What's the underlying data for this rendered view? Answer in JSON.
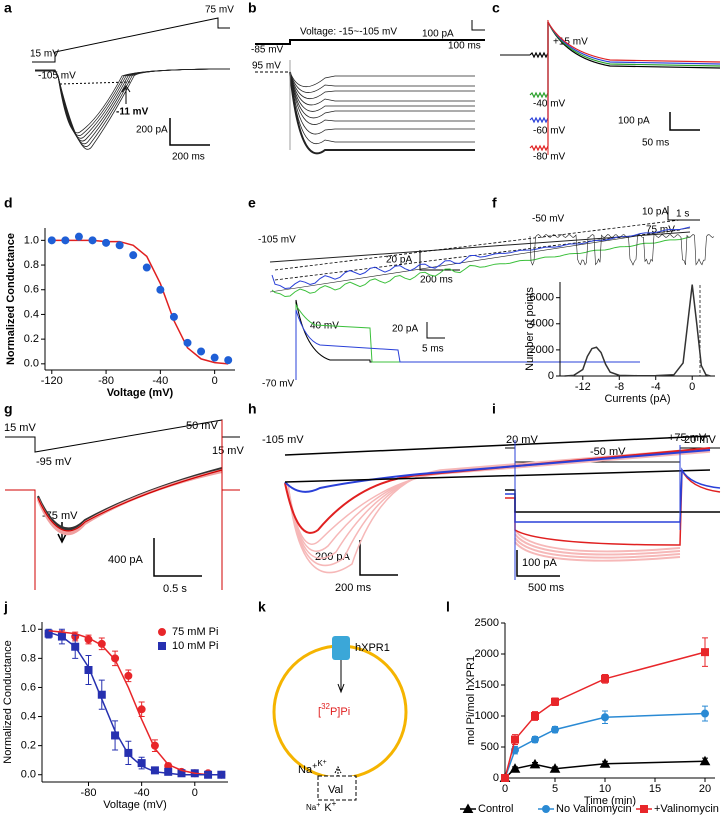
{
  "figure": {
    "a": {
      "label": "a",
      "v_hold": "15 mV",
      "v_end": "75 mV",
      "v_start": "-105 mV",
      "reversal": "-11 mV",
      "scale_y": "200 pA",
      "scale_x": "200 ms"
    },
    "b": {
      "label": "b",
      "v_hold": "-85 mV",
      "v_step": "95 mV",
      "protocol": "Voltage: -15~-105 mV",
      "scale_y": "100 pA",
      "scale_x": "100 ms"
    },
    "c": {
      "label": "c",
      "v_step": "+15 mV",
      "v1": "-40 mV",
      "v2": "-60 mV",
      "v3": "-80 mV",
      "scale_y": "100 pA",
      "scale_x": "50 ms"
    },
    "d": {
      "label": "d"
    },
    "e": {
      "label": "e",
      "v_start": "-105 mV",
      "v_end": "75 mV",
      "scale_y": "20 pA",
      "scale_x": "200 ms",
      "v_step": "40 mV",
      "v_hold": "-70 mV",
      "scale_y2": "20 pA",
      "scale_x2": "5 ms"
    },
    "f": {
      "label": "f",
      "v_hold": "-50 mV",
      "scale_y": "10 pA",
      "scale_x": "1 s"
    },
    "g": {
      "label": "g",
      "v_hold": "15 mV",
      "v_start": "-95 mV",
      "v_end": "50 mV",
      "v_after": "15 mV",
      "reversal": "-75 mV",
      "scale_y": "400 pA",
      "scale_x": "0.5 s"
    },
    "h": {
      "label": "h",
      "v_start": "-105 mV",
      "v_end": "+75 mV",
      "scale_y": "200 pA",
      "scale_x": "200 ms"
    },
    "i": {
      "label": "i",
      "v_hold": "20 mV",
      "v_step": "-50 mV",
      "v_after": "20 mV",
      "scale_y": "100 pA",
      "scale_x": "500 ms"
    },
    "j": {
      "label": "j"
    },
    "k": {
      "label": "k",
      "transporter": "hXPR1",
      "pi_open": "[",
      "pi_mass": "32",
      "pi_rest": "P]Pi",
      "na_in": "Na",
      "na_in_charge": "+",
      "k_in": "K",
      "k_in_charge": "+",
      "val": "Val",
      "na_out": "Na",
      "na_out_charge": "+",
      "k_out": "K",
      "k_out_charge": "+"
    },
    "l": {
      "label": "l"
    }
  },
  "chart_data": [
    {
      "type": "scatter",
      "xlabel": "Voltage (mV)",
      "ylabel": "Normalized Conductance",
      "x": [
        -120,
        -110,
        -100,
        -90,
        -80,
        -70,
        -60,
        -50,
        -40,
        -30,
        -20,
        -10,
        0,
        10
      ],
      "xlim": [
        -125,
        15
      ],
      "ylim": [
        -0.05,
        1.1
      ],
      "xticks": [
        -120,
        -80,
        -40,
        0
      ],
      "yticks": [
        {
          "value": 0,
          "label": "0.0"
        },
        {
          "value": 0.2,
          "label": "0.2"
        },
        {
          "value": 0.4,
          "label": "0.4"
        },
        {
          "value": 0.6,
          "label": "0.6"
        },
        {
          "value": 0.8,
          "label": "0.8"
        },
        {
          "value": 1,
          "label": "1.0"
        }
      ],
      "series": [
        {
          "color": "#e02020",
          "mode": "line",
          "values": [
            1.0,
            1.0,
            1.0,
            1.0,
            0.99,
            0.99,
            0.96,
            0.87,
            0.65,
            0.35,
            0.13,
            0.04,
            0.01,
            0.0
          ]
        },
        {
          "color": "#1f5fd6",
          "mode": "points",
          "marker": "circle",
          "values": [
            1.0,
            1.0,
            1.03,
            1.0,
            0.98,
            0.96,
            0.88,
            0.78,
            0.6,
            0.38,
            0.17,
            0.1,
            0.05,
            0.03
          ]
        }
      ]
    },
    {
      "type": "line",
      "xlabel": "Currents (pA)",
      "ylabel": "Number of points",
      "x": [
        -14,
        -13,
        -12,
        -11.5,
        -11,
        -10.5,
        -10,
        -9.5,
        -9,
        -8,
        -6,
        -4,
        -2,
        -1,
        -0.5,
        0,
        0.5,
        1,
        1.5,
        2
      ],
      "xlim": [
        -14.5,
        2.5
      ],
      "ylim": [
        0,
        7200
      ],
      "xticks": [
        -12,
        -8,
        -4,
        0
      ],
      "yticks": [
        0,
        2000,
        4000,
        6000
      ],
      "series": [
        {
          "color": "#333333",
          "mode": "line",
          "values": [
            0,
            50,
            500,
            1500,
            2100,
            2200,
            1800,
            900,
            300,
            50,
            20,
            30,
            100,
            1000,
            4000,
            7000,
            4000,
            800,
            100,
            0
          ]
        }
      ]
    },
    {
      "type": "scatter",
      "xlabel": "Voltage (mV)",
      "ylabel": "Normalized Conductance",
      "legend": "top-right",
      "x": [
        -110,
        -100,
        -90,
        -80,
        -70,
        -60,
        -50,
        -40,
        -30,
        -20,
        -10,
        0,
        10,
        20
      ],
      "xlim": [
        -115,
        25
      ],
      "ylim": [
        -0.05,
        1.05
      ],
      "xticks": [
        -80,
        -40,
        0
      ],
      "yticks": [
        {
          "value": 0,
          "label": "0.0"
        },
        {
          "value": 0.2,
          "label": "0.2"
        },
        {
          "value": 0.4,
          "label": "0.4"
        },
        {
          "value": 0.6,
          "label": "0.6"
        },
        {
          "value": 0.8,
          "label": "0.8"
        },
        {
          "value": 1,
          "label": "1.0"
        }
      ],
      "series": [
        {
          "name": "75 mM Pi",
          "color": "#e8262a",
          "mode": "points",
          "marker": "circle",
          "values": [
            0.97,
            0.96,
            0.95,
            0.93,
            0.9,
            0.8,
            0.68,
            0.45,
            0.2,
            0.06,
            0.02,
            0.01,
            0.01,
            0.0
          ],
          "errors": [
            0.02,
            0.03,
            0.03,
            0.03,
            0.04,
            0.05,
            0.04,
            0.05,
            0.04,
            0.02,
            0.01,
            0.01,
            0.01,
            0.01
          ]
        },
        {
          "name": "10 mM Pi",
          "color": "#2630b0",
          "mode": "points",
          "marker": "square",
          "values": [
            0.97,
            0.95,
            0.88,
            0.72,
            0.55,
            0.27,
            0.15,
            0.08,
            0.03,
            0.02,
            0.01,
            0.01,
            0.0,
            0.0
          ],
          "errors": [
            0.03,
            0.05,
            0.08,
            0.1,
            0.1,
            0.1,
            0.08,
            0.04,
            0.02,
            0.01,
            0.01,
            0.01,
            0.01,
            0.01
          ]
        },
        {
          "color": "#e8262a",
          "mode": "line",
          "values": [
            0.99,
            0.98,
            0.97,
            0.94,
            0.89,
            0.79,
            0.6,
            0.38,
            0.18,
            0.07,
            0.03,
            0.01,
            0.0,
            0.0
          ]
        },
        {
          "color": "#2630b0",
          "mode": "line",
          "values": [
            0.98,
            0.95,
            0.88,
            0.74,
            0.52,
            0.3,
            0.14,
            0.06,
            0.02,
            0.01,
            0.0,
            0.0,
            0.0,
            0.0
          ]
        }
      ]
    },
    {
      "type": "line",
      "xlabel": "Time (min)",
      "ylabel": "mol Pi/mol hXPR1",
      "legend": "bottom",
      "x": [
        0,
        1,
        3,
        5,
        10,
        20
      ],
      "xlim": [
        0,
        21
      ],
      "ylim": [
        0,
        2500
      ],
      "xticks": [
        0,
        5,
        10,
        15,
        20
      ],
      "yticks": [
        0,
        500,
        1000,
        1500,
        2000,
        2500
      ],
      "series": [
        {
          "name": "Control",
          "color": "#000000",
          "mode": "linepoints",
          "marker": "triangle",
          "values": [
            0,
            150,
            220,
            150,
            230,
            270
          ],
          "errors": [
            0,
            30,
            30,
            30,
            40,
            50
          ]
        },
        {
          "name": "No Valinomycin",
          "color": "#2a8ad4",
          "mode": "linepoints",
          "marker": "circle",
          "values": [
            0,
            450,
            620,
            780,
            980,
            1040
          ],
          "errors": [
            0,
            60,
            50,
            50,
            100,
            120
          ]
        },
        {
          "name": "+Valinomycin",
          "color": "#e8262a",
          "mode": "linepoints",
          "marker": "square",
          "values": [
            0,
            620,
            1000,
            1230,
            1600,
            2030
          ],
          "errors": [
            0,
            80,
            70,
            60,
            70,
            230
          ]
        }
      ]
    }
  ]
}
